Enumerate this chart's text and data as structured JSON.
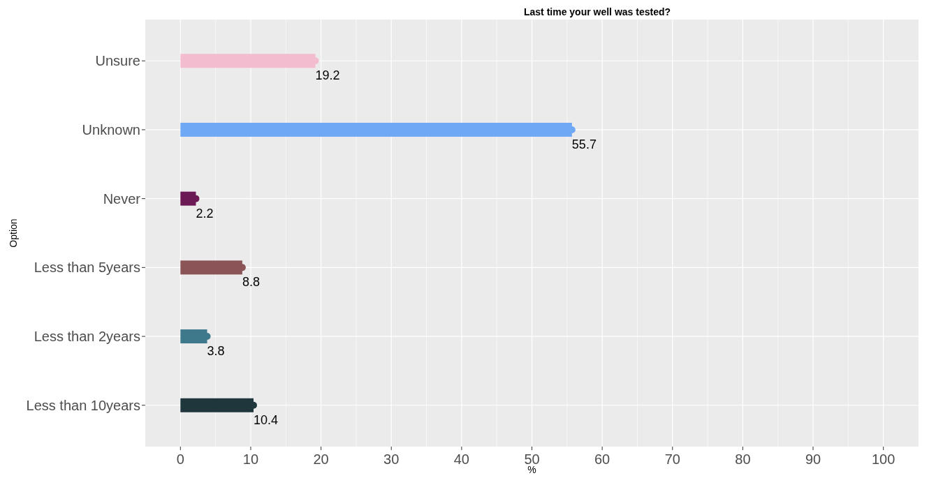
{
  "chart_data": {
    "type": "bar",
    "orientation": "horizontal",
    "title": "Last time your well was tested?",
    "xlabel": "%",
    "ylabel": "Option",
    "categories": [
      "Unsure",
      "Unknown",
      "Never",
      "Less than 5years",
      "Less than 2years",
      "Less than 10years"
    ],
    "series": [
      {
        "values": [
          19.2,
          55.7,
          2.2,
          8.8,
          3.8,
          10.4
        ],
        "value_labels": [
          "19.2",
          "55.7",
          "2.2",
          "8.8",
          "3.8",
          "10.4"
        ],
        "colors": [
          "#f4bccf",
          "#6fa8f5",
          "#6b1a55",
          "#8b5558",
          "#3e788b",
          "#1f363d"
        ]
      },
      {
        "type": "scatter",
        "marker": "circle",
        "values": [
          19.2,
          55.7,
          2.2,
          8.8,
          3.8,
          10.4
        ],
        "colors": [
          "#f4bccf",
          "#6fa8f5",
          "#6b1a55",
          "#8b5558",
          "#3e788b",
          "#1f363d"
        ]
      }
    ],
    "xlim": [
      -5,
      105
    ],
    "xticks": [
      0,
      10,
      20,
      30,
      40,
      50,
      60,
      70,
      80,
      90,
      100
    ],
    "grid": true
  }
}
